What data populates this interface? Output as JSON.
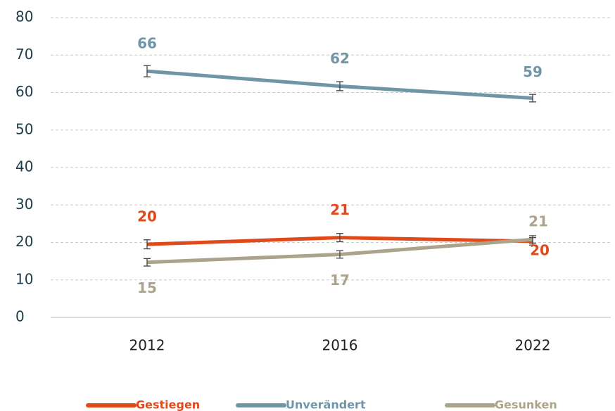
{
  "chart_data": {
    "type": "line",
    "categories": [
      "2012",
      "2016",
      "2022"
    ],
    "series": [
      {
        "name": "Gestiegen",
        "color": "#e04a1a",
        "values": [
          19.5,
          21.3,
          20.3
        ],
        "value_labels": [
          "20",
          "21",
          "20"
        ],
        "errors": [
          1.2,
          1.1,
          1.0
        ]
      },
      {
        "name": "Unverändert",
        "color": "#6f96a6",
        "values": [
          65.7,
          61.7,
          58.5
        ],
        "value_labels": [
          "66",
          "62",
          "59"
        ],
        "errors": [
          1.5,
          1.2,
          1.0
        ]
      },
      {
        "name": "Gesunken",
        "color": "#aba38a",
        "values": [
          14.7,
          16.8,
          20.8
        ],
        "value_labels": [
          "15",
          "17",
          "21"
        ],
        "errors": [
          1.0,
          1.0,
          1.0
        ]
      }
    ],
    "ylim": [
      0,
      80
    ],
    "yticks": [
      0,
      10,
      20,
      30,
      40,
      50,
      60,
      70,
      80
    ],
    "grid": true,
    "legend": "bottom"
  }
}
